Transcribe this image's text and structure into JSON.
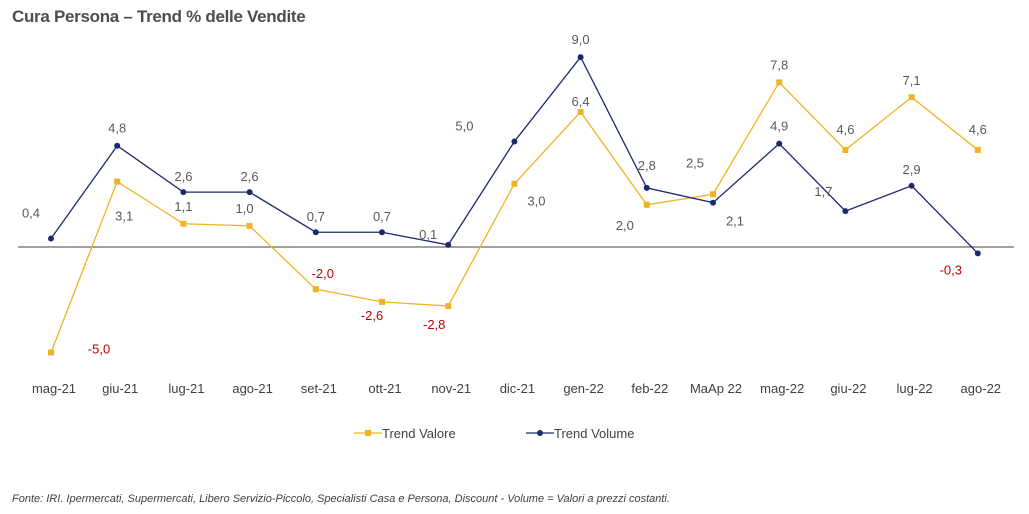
{
  "chart_data": {
    "type": "line",
    "title": "Cura Persona – Trend % delle Vendite",
    "categories": [
      "mag-21",
      "giu-21",
      "lug-21",
      "ago-21",
      "set-21",
      "ott-21",
      "nov-21",
      "dic-21",
      "gen-22",
      "feb-22",
      "MaAp 22",
      "mag-22",
      "giu-22",
      "lug-22",
      "ago-22"
    ],
    "series": [
      {
        "name": "Trend Valore",
        "color": "#f0b323",
        "values": [
          -5.0,
          3.1,
          1.1,
          1.0,
          -2.0,
          -2.6,
          -2.8,
          3.0,
          6.4,
          2.0,
          2.5,
          7.8,
          4.6,
          7.1,
          4.6
        ],
        "labels": [
          "-5,0",
          "3,1",
          "1,1",
          "1,0",
          "-2,0",
          "-2,6",
          "-2,8",
          "3,0",
          "6,4",
          "2,0",
          "2,5",
          "7,8",
          "4,6",
          "7,1",
          "4,6"
        ]
      },
      {
        "name": "Trend Volume",
        "color": "#1b2a6b",
        "values": [
          0.4,
          4.8,
          2.6,
          2.6,
          0.7,
          0.7,
          0.1,
          5.0,
          9.0,
          2.8,
          2.1,
          4.9,
          1.7,
          2.9,
          -0.3
        ],
        "labels": [
          "0,4",
          "4,8",
          "2,6",
          "2,6",
          "0,7",
          "0,7",
          "0,1",
          "5,0",
          "9,0",
          "2,8",
          "2,1",
          "4,9",
          "1,7",
          "2,9",
          "-0,3"
        ]
      }
    ],
    "negative_label_color": "#c00000",
    "positive_label_color": "#595959",
    "legend_position": "bottom",
    "grid": false,
    "zero_line": true,
    "ylim": [
      -6,
      10
    ]
  },
  "footnote": "Fonte: IRI. Ipermercati, Supermercati, Libero Servizio-Piccolo,  Specialisti Casa e Persona, Discount -  Volume =  Valori a prezzi costanti."
}
